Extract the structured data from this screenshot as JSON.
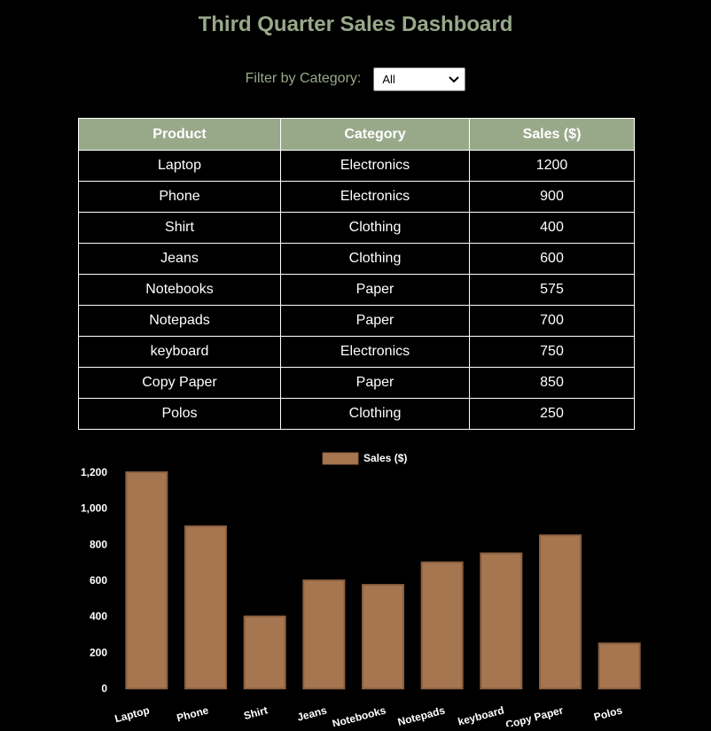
{
  "page": {
    "title": "Third Quarter Sales Dashboard"
  },
  "filter": {
    "label": "Filter by Category:",
    "selected": "All"
  },
  "table": {
    "headers": [
      "Product",
      "Category",
      "Sales ($)"
    ],
    "rows": [
      [
        "Laptop",
        "Electronics",
        "1200"
      ],
      [
        "Phone",
        "Electronics",
        "900"
      ],
      [
        "Shirt",
        "Clothing",
        "400"
      ],
      [
        "Jeans",
        "Clothing",
        "600"
      ],
      [
        "Notebooks",
        "Paper",
        "575"
      ],
      [
        "Notepads",
        "Paper",
        "700"
      ],
      [
        "keyboard",
        "Electronics",
        "750"
      ],
      [
        "Copy Paper",
        "Paper",
        "850"
      ],
      [
        "Polos",
        "Clothing",
        "250"
      ]
    ]
  },
  "colors": {
    "accent": "#98a98a",
    "bar_fill": "#a67650",
    "bar_border": "#8a6040",
    "background": "#000000"
  },
  "chart_data": {
    "type": "bar",
    "categories": [
      "Laptop",
      "Phone",
      "Shirt",
      "Jeans",
      "Notebooks",
      "Notepads",
      "keyboard",
      "Copy Paper",
      "Polos"
    ],
    "series": [
      {
        "name": "Sales ($)",
        "values": [
          1200,
          900,
          400,
          600,
          575,
          700,
          750,
          850,
          250
        ]
      }
    ],
    "yticks": [
      "0",
      "200",
      "400",
      "600",
      "800",
      "1,000",
      "1,200"
    ],
    "ylim": [
      0,
      1200
    ],
    "grid": false,
    "legend": "top-center",
    "title": "",
    "xlabel": "",
    "ylabel": ""
  }
}
